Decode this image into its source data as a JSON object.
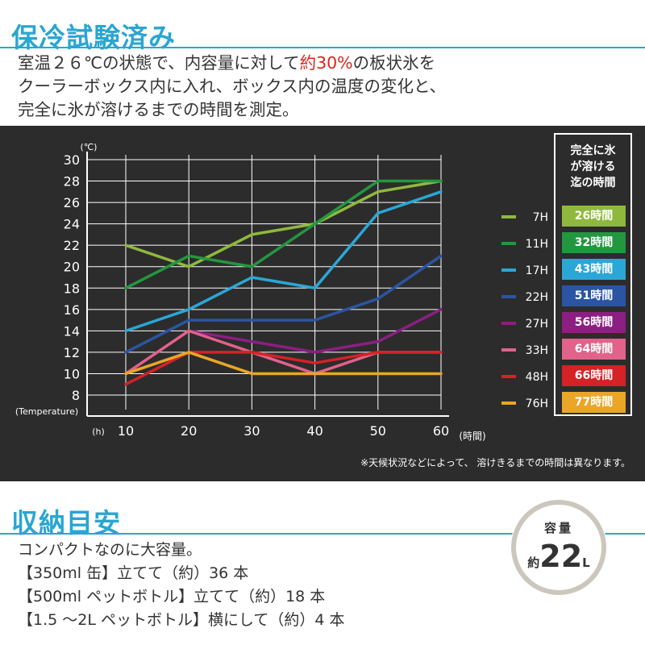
{
  "header": {
    "title": "保冷試験済み",
    "intro_line1_a": "室温２６℃の状態で、内容量に対して",
    "intro_line1_hl": "約30%",
    "intro_line1_b": "の板状氷を",
    "intro_line2": "クーラーボックス内に入れ、ボックス内の温度の変化と、",
    "intro_line3": "完全に氷が溶けるまでの時間を測定。"
  },
  "chart_data": {
    "type": "line",
    "x": [
      10,
      20,
      30,
      40,
      50,
      60
    ],
    "xlim": [
      10,
      60
    ],
    "ylim": [
      8,
      30
    ],
    "x_ticks": [
      "10",
      "20",
      "30",
      "40",
      "50",
      "60"
    ],
    "y_ticks": [
      "8",
      "10",
      "12",
      "14",
      "16",
      "18",
      "20",
      "22",
      "24",
      "26",
      "28",
      "30"
    ],
    "y_unit": "(℃)",
    "y_label": "(Temperature)",
    "x_unit": "(h)",
    "x_label": "(時間)",
    "grid": true,
    "series": [
      {
        "name": "7H",
        "color": "#8fb93e",
        "duration": "26時間",
        "values": [
          22,
          20,
          23,
          24,
          27,
          28
        ]
      },
      {
        "name": "11H",
        "color": "#23973f",
        "duration": "32時間",
        "values": [
          18,
          21,
          20,
          24,
          28,
          28
        ]
      },
      {
        "name": "17H",
        "color": "#2aa7d6",
        "duration": "43時間",
        "values": [
          14,
          16,
          19,
          18,
          25,
          27
        ]
      },
      {
        "name": "22H",
        "color": "#2b55a2",
        "duration": "51時間",
        "values": [
          12,
          15,
          15,
          15,
          17,
          21
        ]
      },
      {
        "name": "27H",
        "color": "#8b1f82",
        "duration": "56時間",
        "values": [
          10,
          14,
          13,
          12,
          13,
          16
        ]
      },
      {
        "name": "33H",
        "color": "#e1628a",
        "duration": "64時間",
        "values": [
          10,
          14,
          12,
          10,
          12,
          12
        ]
      },
      {
        "name": "48H",
        "color": "#d42227",
        "duration": "66時間",
        "values": [
          9,
          12,
          12,
          11,
          12,
          12
        ]
      },
      {
        "name": "76H",
        "color": "#e9a628",
        "duration": "77時間",
        "values": [
          10,
          12,
          10,
          10,
          10,
          10
        ]
      }
    ]
  },
  "legend": {
    "heading_line1": "完全に氷",
    "heading_line2": "が溶ける",
    "heading_line3": "迄の時間"
  },
  "note": "※天候状況などによって、 溶けきるまでの時間は異なります。",
  "storage": {
    "title": "収納目安",
    "line1": "コンパクトなのに大容量。",
    "line2": "【350ml 缶】立てて（約）36 本",
    "line3": "【500ml ペットボトル】立てて（約）18 本",
    "line4": "【1.5 ～2L ペットボトル】横にして（約）4 本"
  },
  "capacity": {
    "label": "容量",
    "prefix": "約",
    "value": "22",
    "unit": "L"
  }
}
